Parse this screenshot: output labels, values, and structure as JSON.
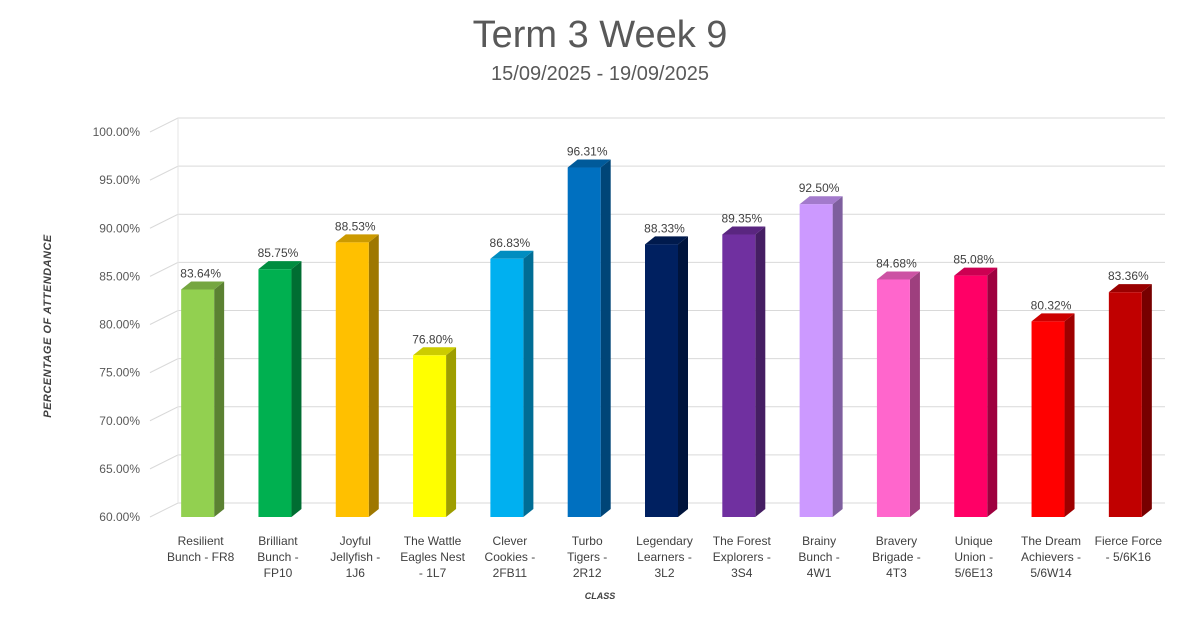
{
  "chart_data": {
    "type": "bar",
    "title": "Term 3 Week 9",
    "subtitle": "15/09/2025 - 19/09/2025",
    "xlabel": "CLASS",
    "ylabel": "PERCENTAGE OF ATTENDANCE",
    "ylim": [
      60,
      100
    ],
    "ytick_step": 5,
    "ytick_labels": [
      "60.00%",
      "65.00%",
      "70.00%",
      "75.00%",
      "80.00%",
      "85.00%",
      "90.00%",
      "95.00%",
      "100.00%"
    ],
    "grid": true,
    "legend": "none",
    "categories": [
      [
        "Resilient",
        "Bunch - FR8"
      ],
      [
        "Brilliant",
        "Bunch -",
        "FP10"
      ],
      [
        "Joyful",
        "Jellyfish -",
        "1J6"
      ],
      [
        "The Wattle",
        "Eagles Nest",
        "- 1L7"
      ],
      [
        "Clever",
        "Cookies -",
        "2FB11"
      ],
      [
        "Turbo",
        "Tigers -",
        "2R12"
      ],
      [
        "Legendary",
        "Learners -",
        "3L2"
      ],
      [
        "The Forest",
        "Explorers -",
        "3S4"
      ],
      [
        "Brainy",
        "Bunch -",
        "4W1"
      ],
      [
        "Bravery",
        "Brigade -",
        "4T3"
      ],
      [
        "Unique",
        "Union -",
        "5/6E13"
      ],
      [
        "The Dream",
        "Achievers -",
        "5/6W14"
      ],
      [
        "Fierce Force",
        "- 5/6K16"
      ]
    ],
    "values": [
      83.64,
      85.75,
      88.53,
      76.8,
      86.83,
      96.31,
      88.33,
      89.35,
      92.5,
      84.68,
      85.08,
      80.32,
      83.36
    ],
    "data_labels": [
      "83.64%",
      "85.75%",
      "88.53%",
      "76.80%",
      "86.83%",
      "96.31%",
      "88.33%",
      "89.35%",
      "92.50%",
      "84.68%",
      "85.08%",
      "80.32%",
      "83.36%"
    ],
    "colors": [
      "#92d050",
      "#00b050",
      "#ffc000",
      "#ffff00",
      "#00b0f0",
      "#0070c0",
      "#002060",
      "#7030a0",
      "#cc99ff",
      "#ff66cc",
      "#ff0066",
      "#ff0000",
      "#c00000"
    ]
  }
}
